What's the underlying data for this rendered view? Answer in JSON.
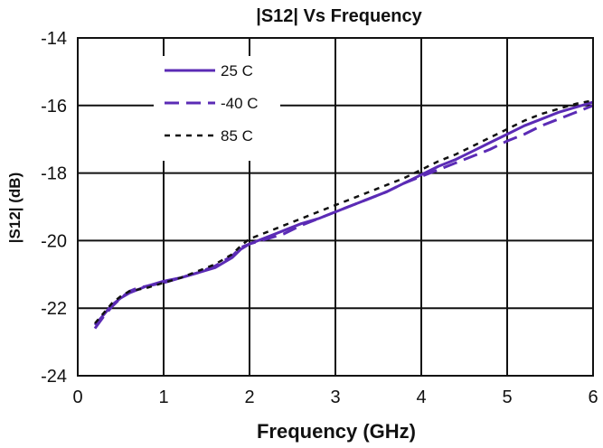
{
  "chart_data": {
    "type": "line",
    "title": "|S12| Vs Frequency",
    "xlabel": "Frequency (GHz)",
    "ylabel": "|S12| (dB)",
    "xlim": [
      0,
      6
    ],
    "ylim": [
      -24,
      -14
    ],
    "xticks": [
      0,
      1,
      2,
      3,
      4,
      5,
      6
    ],
    "yticks": [
      -14,
      -16,
      -18,
      -20,
      -22,
      -24
    ],
    "grid": true,
    "legend_position": "top-left",
    "series": [
      {
        "name": "25 C",
        "color": "#5b2bb5",
        "style": "solid",
        "x": [
          0.2,
          0.3,
          0.4,
          0.5,
          0.6,
          0.7,
          0.8,
          1.0,
          1.2,
          1.4,
          1.6,
          1.8,
          1.9,
          2.0,
          2.2,
          2.4,
          2.6,
          2.8,
          3.0,
          3.2,
          3.4,
          3.6,
          3.8,
          4.0,
          4.2,
          4.4,
          4.6,
          4.8,
          5.0,
          5.2,
          5.4,
          5.6,
          5.8,
          6.0
        ],
        "y": [
          -22.5,
          -22.2,
          -21.9,
          -21.7,
          -21.55,
          -21.45,
          -21.35,
          -21.2,
          -21.1,
          -20.95,
          -20.8,
          -20.5,
          -20.25,
          -20.1,
          -19.9,
          -19.7,
          -19.5,
          -19.35,
          -19.15,
          -18.95,
          -18.75,
          -18.55,
          -18.3,
          -18.05,
          -17.8,
          -17.6,
          -17.35,
          -17.1,
          -16.85,
          -16.6,
          -16.4,
          -16.2,
          -16.05,
          -15.9
        ]
      },
      {
        "name": "-40 C",
        "color": "#5b2bb5",
        "style": "dashed",
        "x": [
          0.2,
          0.3,
          0.4,
          0.5,
          0.6,
          0.7,
          0.8,
          1.0,
          1.2,
          1.4,
          1.6,
          1.8,
          1.9,
          2.0,
          2.2,
          2.4,
          2.6,
          2.8,
          3.0,
          3.2,
          3.4,
          3.6,
          3.8,
          4.0,
          4.2,
          4.4,
          4.6,
          4.8,
          5.0,
          5.2,
          5.4,
          5.6,
          5.8,
          6.0
        ],
        "y": [
          -22.6,
          -22.25,
          -21.95,
          -21.7,
          -21.5,
          -21.4,
          -21.35,
          -21.25,
          -21.1,
          -20.95,
          -20.75,
          -20.45,
          -20.2,
          -20.1,
          -19.95,
          -19.8,
          -19.55,
          -19.35,
          -19.15,
          -18.95,
          -18.75,
          -18.55,
          -18.3,
          -18.1,
          -17.9,
          -17.7,
          -17.5,
          -17.3,
          -17.05,
          -16.85,
          -16.6,
          -16.4,
          -16.2,
          -16.0
        ]
      },
      {
        "name": "85 C",
        "color": "#111111",
        "style": "dotted",
        "x": [
          0.2,
          0.3,
          0.4,
          0.5,
          0.6,
          0.7,
          0.8,
          1.0,
          1.2,
          1.4,
          1.6,
          1.8,
          1.9,
          2.0,
          2.2,
          2.4,
          2.6,
          2.8,
          3.0,
          3.2,
          3.4,
          3.6,
          3.8,
          4.0,
          4.2,
          4.4,
          4.6,
          4.8,
          5.0,
          5.2,
          5.4,
          5.6,
          5.8,
          6.0
        ],
        "y": [
          -22.45,
          -22.15,
          -21.85,
          -21.65,
          -21.5,
          -21.45,
          -21.4,
          -21.25,
          -21.1,
          -20.9,
          -20.7,
          -20.4,
          -20.15,
          -19.95,
          -19.75,
          -19.55,
          -19.35,
          -19.15,
          -18.95,
          -18.75,
          -18.55,
          -18.35,
          -18.15,
          -17.9,
          -17.65,
          -17.45,
          -17.2,
          -16.95,
          -16.7,
          -16.45,
          -16.25,
          -16.1,
          -15.95,
          -15.85
        ]
      }
    ]
  }
}
